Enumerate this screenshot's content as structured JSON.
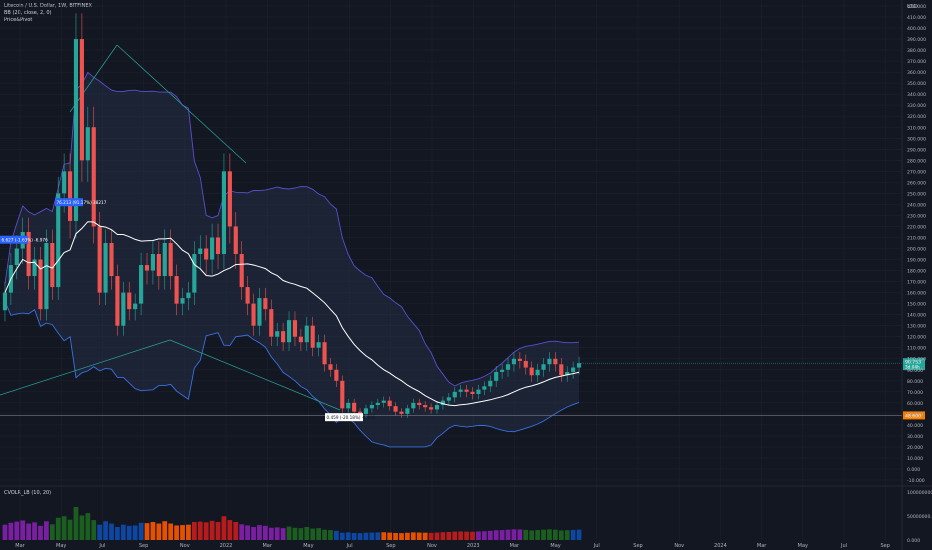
{
  "legend": {
    "symbol": "Litecoin / U.S. Dollar, 1W, BITFINEX",
    "indicator_bb": "BB (20, close, 2, 0)",
    "indicator_pivot": "Price&Pivot"
  },
  "volume_legend": "CVOLR_LB (10, 20)",
  "colors": {
    "background": "#131722",
    "up": "#26a69a",
    "down": "#ef5350",
    "bb_band": "#5a4fcf",
    "bb_lower": "#3b6fe0",
    "basis": "#ffffff",
    "price_label": "#26a69a",
    "level_label": "#f57c00"
  },
  "chart_data": {
    "type": "candlestick",
    "title": "Litecoin / U.S. Dollar, 1W, BITFINEX",
    "y_axis": {
      "unit": "USD",
      "ylim": [
        -10,
        420
      ],
      "ticks": [
        "420.000",
        "410.000",
        "400.000",
        "390.000",
        "380.000",
        "370.000",
        "360.000",
        "350.000",
        "340.000",
        "330.000",
        "320.000",
        "310.000",
        "300.000",
        "290.000",
        "280.000",
        "270.000",
        "260.000",
        "250.000",
        "240.000",
        "230.000",
        "220.000",
        "210.000",
        "200.000",
        "190.000",
        "180.000",
        "170.000",
        "160.000",
        "150.000",
        "140.000",
        "130.000",
        "120.000",
        "110.000",
        "100.000",
        "90.000",
        "80.000",
        "70.000",
        "60.000",
        "50.000",
        "40.000",
        "30.000",
        "20.000",
        "10.000",
        "0.000",
        "-10.000"
      ]
    },
    "x_axis": {
      "labels": [
        "Mar",
        "May",
        "Jul",
        "Sep",
        "Nov",
        "2022",
        "Mar",
        "May",
        "Jul",
        "Sep",
        "Nov",
        "2023",
        "Mar",
        "May",
        "Jul",
        "Sep",
        "Nov",
        "2024",
        "Mar",
        "May",
        "Jul",
        "Sep"
      ]
    },
    "closes": [
      160,
      185,
      200,
      215,
      175,
      190,
      145,
      205,
      165,
      250,
      270,
      225,
      390,
      280,
      310,
      220,
      160,
      205,
      175,
      130,
      160,
      145,
      150,
      185,
      180,
      195,
      175,
      205,
      175,
      150,
      155,
      160,
      195,
      200,
      190,
      210,
      195,
      270,
      220,
      195,
      165,
      150,
      130,
      155,
      145,
      120,
      125,
      115,
      135,
      120,
      115,
      130,
      110,
      115,
      95,
      90,
      80,
      55,
      60,
      52,
      50,
      55,
      58,
      60,
      62,
      57,
      52,
      50,
      55,
      60,
      58,
      56,
      54,
      58,
      62,
      65,
      70,
      72,
      70,
      68,
      72,
      75,
      80,
      88,
      90,
      95,
      100,
      98,
      92,
      85,
      90,
      95,
      100,
      95,
      85,
      88,
      92,
      96
    ],
    "annotations": [
      {
        "label": "76.213 (91.17%) 38217",
        "price": 242
      },
      {
        "label": "6.627 (-1.63%) -6.976",
        "price": 208
      },
      {
        "label": "0.459 (-20.18%) -5.631",
        "price": 47
      }
    ],
    "last_price": "90.753",
    "last_price_sub": "3d 04h",
    "level_price": "48.600",
    "level_value": 48.6,
    "volume_panel": {
      "ticks": [
        "100000000.000",
        "50000000.000",
        "0.000"
      ],
      "ylim": [
        0,
        100000000
      ]
    }
  }
}
